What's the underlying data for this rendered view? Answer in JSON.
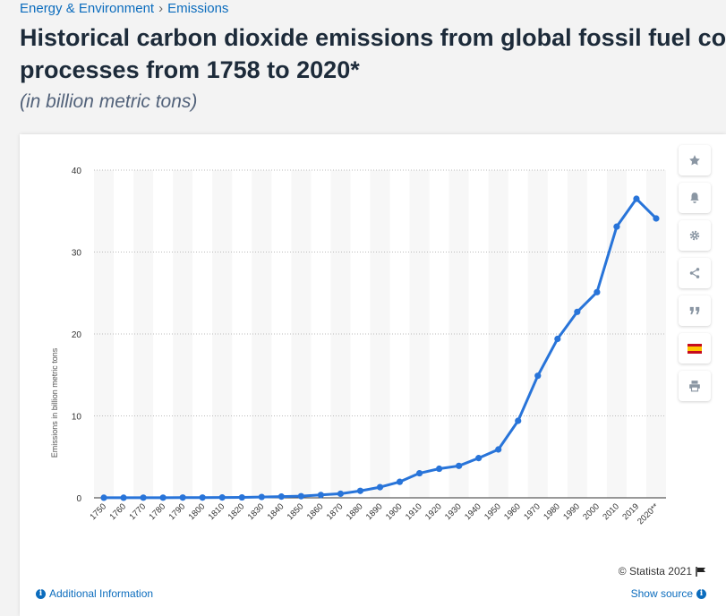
{
  "breadcrumb": {
    "category": "Energy & Environment",
    "separator": "›",
    "topic": "Emissions"
  },
  "page": {
    "title_line1": "Historical carbon dioxide emissions from global fossil fuel cor",
    "title_line2": "processes from 1758 to 2020*",
    "subtitle": "(in billion metric tons)"
  },
  "toolbar": {
    "icons": [
      "star-icon",
      "bell-icon",
      "gear-icon",
      "share-icon",
      "quote-icon",
      "spain-flag-icon",
      "print-icon"
    ],
    "accent": "#8a96a3"
  },
  "footer": {
    "copyright": "© Statista 2021",
    "additional_info": "Additional Information",
    "show_source": "Show source",
    "link_color": "#0b6cbd"
  },
  "chart_data": {
    "type": "line",
    "title": "",
    "xlabel": "",
    "ylabel": "Emissions in billion metric tons",
    "ylim": [
      0,
      40
    ],
    "yticks": [
      0,
      10,
      20,
      30,
      40
    ],
    "grid": true,
    "line_color": "#2874d9",
    "categories": [
      "1750",
      "1760",
      "1770",
      "1780",
      "1790",
      "1800",
      "1810",
      "1820",
      "1830",
      "1840",
      "1850",
      "1860",
      "1870",
      "1880",
      "1890",
      "1900",
      "1910",
      "1920",
      "1930",
      "1940",
      "1950",
      "1960",
      "1970",
      "1980",
      "1990",
      "2000",
      "2010",
      "2019",
      "2020**"
    ],
    "series": [
      {
        "values": [
          0.01,
          0.01,
          0.02,
          0.02,
          0.03,
          0.03,
          0.04,
          0.05,
          0.1,
          0.15,
          0.2,
          0.35,
          0.5,
          0.85,
          1.3,
          1.95,
          3.0,
          3.55,
          3.9,
          4.85,
          5.9,
          9.4,
          14.9,
          19.4,
          22.7,
          25.1,
          33.1,
          36.5,
          34.1
        ]
      }
    ]
  }
}
